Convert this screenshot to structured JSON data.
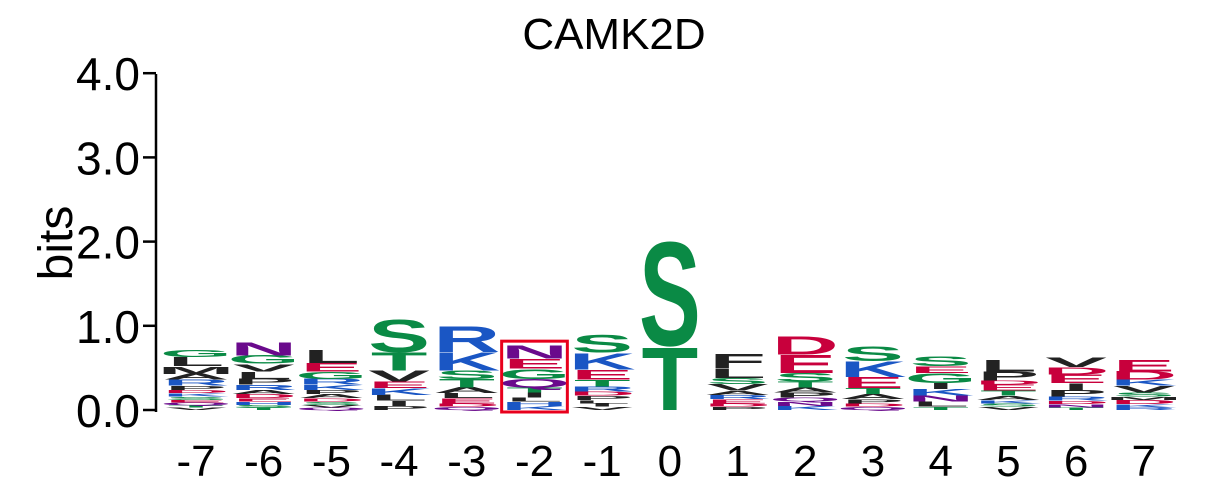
{
  "chart_data": {
    "type": "sequence-logo",
    "title": "CAMK2D",
    "ylabel": "bits",
    "ylim": [
      0,
      4
    ],
    "yticks": [
      "0.0",
      "1.0",
      "2.0",
      "3.0",
      "4.0"
    ],
    "positions": [
      "-7",
      "-6",
      "-5",
      "-4",
      "-3",
      "-2",
      "-1",
      "0",
      "1",
      "2",
      "3",
      "4",
      "5",
      "6",
      "7"
    ],
    "highlight_position": "-2",
    "colors": {
      "green": "#0a8a45",
      "blue": "#1a56c4",
      "red": "#c8003c",
      "purple": "#6a0a8c",
      "black": "#222222",
      "highlight": "#e8001c"
    },
    "stacks": [
      [
        [
          "V",
          0.03
        ],
        [
          "T",
          0.03
        ],
        [
          "Q",
          0.03
        ],
        [
          "E",
          0.03
        ],
        [
          "S",
          0.04
        ],
        [
          "K",
          0.04
        ],
        [
          "D",
          0.04
        ],
        [
          "P",
          0.05
        ],
        [
          "R",
          0.07
        ],
        [
          "A",
          0.07
        ],
        [
          "M",
          0.09
        ],
        [
          "L",
          0.11
        ],
        [
          "G",
          0.09
        ]
      ],
      [
        [
          "T",
          0.03
        ],
        [
          "S",
          0.03
        ],
        [
          "H",
          0.04
        ],
        [
          "E",
          0.04
        ],
        [
          "D",
          0.05
        ],
        [
          "A",
          0.05
        ],
        [
          "R",
          0.06
        ],
        [
          "P",
          0.07
        ],
        [
          "L",
          0.09
        ],
        [
          "V",
          0.09
        ],
        [
          "G",
          0.1
        ],
        [
          "N",
          0.16
        ]
      ],
      [
        [
          "Q",
          0.03
        ],
        [
          "V",
          0.03
        ],
        [
          "S",
          0.04
        ],
        [
          "D",
          0.04
        ],
        [
          "A",
          0.05
        ],
        [
          "P",
          0.05
        ],
        [
          "K",
          0.06
        ],
        [
          "R",
          0.07
        ],
        [
          "G",
          0.09
        ],
        [
          "E",
          0.1
        ],
        [
          "L",
          0.16
        ]
      ],
      [
        [
          "P",
          0.05
        ],
        [
          "I",
          0.06
        ],
        [
          "L",
          0.07
        ],
        [
          "K",
          0.08
        ],
        [
          "E",
          0.08
        ],
        [
          "V",
          0.13
        ],
        [
          "T",
          0.22
        ],
        [
          "S",
          0.4
        ]
      ],
      [
        [
          "Q",
          0.04
        ],
        [
          "D",
          0.04
        ],
        [
          "E",
          0.06
        ],
        [
          "L",
          0.06
        ],
        [
          "A",
          0.07
        ],
        [
          "T",
          0.1
        ],
        [
          "S",
          0.1
        ],
        [
          "K",
          0.22
        ],
        [
          "R",
          0.32
        ]
      ],
      [
        [
          "K",
          0.05
        ],
        [
          "H",
          0.05
        ],
        [
          "L",
          0.05
        ],
        [
          "I",
          0.06
        ],
        [
          "T",
          0.06
        ],
        [
          "Q",
          0.1
        ],
        [
          "G",
          0.12
        ],
        [
          "E",
          0.12
        ],
        [
          "N",
          0.16
        ]
      ],
      [
        [
          "V",
          0.04
        ],
        [
          "I",
          0.04
        ],
        [
          "L",
          0.04
        ],
        [
          "P",
          0.05
        ],
        [
          "D",
          0.05
        ],
        [
          "R",
          0.06
        ],
        [
          "T",
          0.08
        ],
        [
          "E",
          0.12
        ],
        [
          "K",
          0.2
        ],
        [
          "S",
          0.21
        ]
      ],
      [
        [
          "T",
          0.77
        ],
        [
          "S",
          1.27
        ]
      ],
      [
        [
          "P",
          0.04
        ],
        [
          "D",
          0.04
        ],
        [
          "E",
          0.05
        ],
        [
          "R",
          0.05
        ],
        [
          "A",
          0.05
        ],
        [
          "V",
          0.08
        ],
        [
          "S",
          0.07
        ],
        [
          "L",
          0.11
        ],
        [
          "F",
          0.18
        ]
      ],
      [
        [
          "K",
          0.05
        ],
        [
          "N",
          0.05
        ],
        [
          "Q",
          0.05
        ],
        [
          "P",
          0.06
        ],
        [
          "A",
          0.06
        ],
        [
          "T",
          0.07
        ],
        [
          "S",
          0.1
        ],
        [
          "E",
          0.22
        ],
        [
          "D",
          0.22
        ]
      ],
      [
        [
          "Q",
          0.04
        ],
        [
          "D",
          0.04
        ],
        [
          "P",
          0.05
        ],
        [
          "A",
          0.06
        ],
        [
          "T",
          0.07
        ],
        [
          "E",
          0.13
        ],
        [
          "K",
          0.19
        ],
        [
          "S",
          0.18
        ]
      ],
      [
        [
          "T",
          0.04
        ],
        [
          "L",
          0.06
        ],
        [
          "N",
          0.07
        ],
        [
          "K",
          0.08
        ],
        [
          "I",
          0.07
        ],
        [
          "G",
          0.12
        ],
        [
          "E",
          0.08
        ],
        [
          "S",
          0.12
        ]
      ],
      [
        [
          "V",
          0.04
        ],
        [
          "S",
          0.04
        ],
        [
          "K",
          0.04
        ],
        [
          "A",
          0.05
        ],
        [
          "T",
          0.06
        ],
        [
          "E",
          0.07
        ],
        [
          "D",
          0.05
        ],
        [
          "P",
          0.11
        ],
        [
          "L",
          0.14
        ]
      ],
      [
        [
          "T",
          0.03
        ],
        [
          "N",
          0.04
        ],
        [
          "D",
          0.04
        ],
        [
          "R",
          0.05
        ],
        [
          "P",
          0.08
        ],
        [
          "I",
          0.08
        ],
        [
          "E",
          0.1
        ],
        [
          "D",
          0.09
        ],
        [
          "V",
          0.12
        ]
      ],
      [
        [
          "R",
          0.03
        ],
        [
          "K",
          0.04
        ],
        [
          "D",
          0.05
        ],
        [
          "M",
          0.04
        ],
        [
          "S",
          0.05
        ],
        [
          "V",
          0.08
        ],
        [
          "K",
          0.07
        ],
        [
          "D",
          0.1
        ],
        [
          "E",
          0.14
        ]
      ]
    ]
  }
}
